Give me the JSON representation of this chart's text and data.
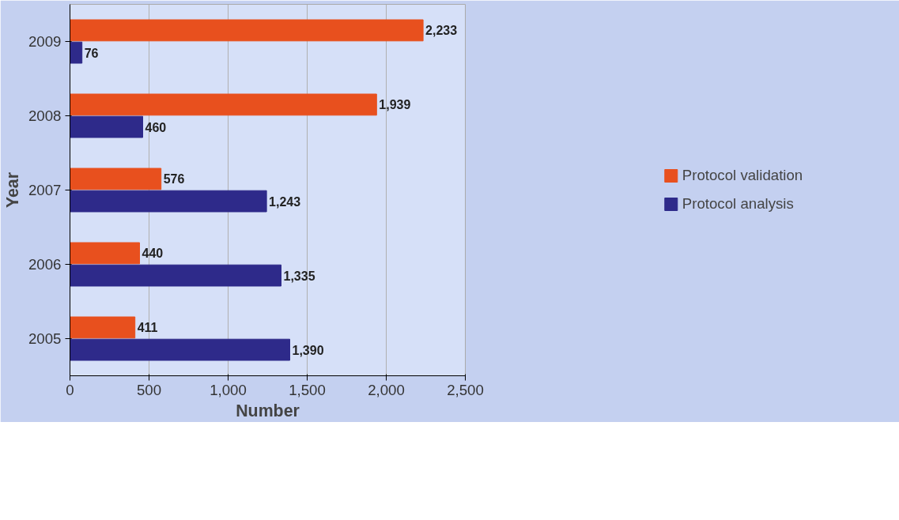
{
  "chart_data": {
    "type": "bar",
    "orientation": "horizontal",
    "xlabel": "Number",
    "ylabel": "Year",
    "categories": [
      "2009",
      "2008",
      "2007",
      "2006",
      "2005"
    ],
    "series": [
      {
        "name": "Protocol validation",
        "color": "#e8501e",
        "values": [
          2233,
          1939,
          576,
          440,
          411
        ],
        "value_labels": [
          "2,233",
          "1,939",
          "576",
          "440",
          "411"
        ]
      },
      {
        "name": "Protocol analysis",
        "color": "#2e2a8a",
        "values": [
          76,
          460,
          1243,
          1335,
          1390
        ],
        "value_labels": [
          "76",
          "460",
          "1,243",
          "1,335",
          "1,390"
        ]
      }
    ],
    "xlim": [
      0,
      2500
    ],
    "xticks": [
      0,
      500,
      {
        "value": 1000,
        "label": "1,000"
      },
      {
        "value": 1500,
        "label": "1,500"
      },
      {
        "value": 2000,
        "label": "2,000"
      },
      {
        "value": 2500,
        "label": "2,500"
      }
    ],
    "grid": "x",
    "legend": "right"
  }
}
